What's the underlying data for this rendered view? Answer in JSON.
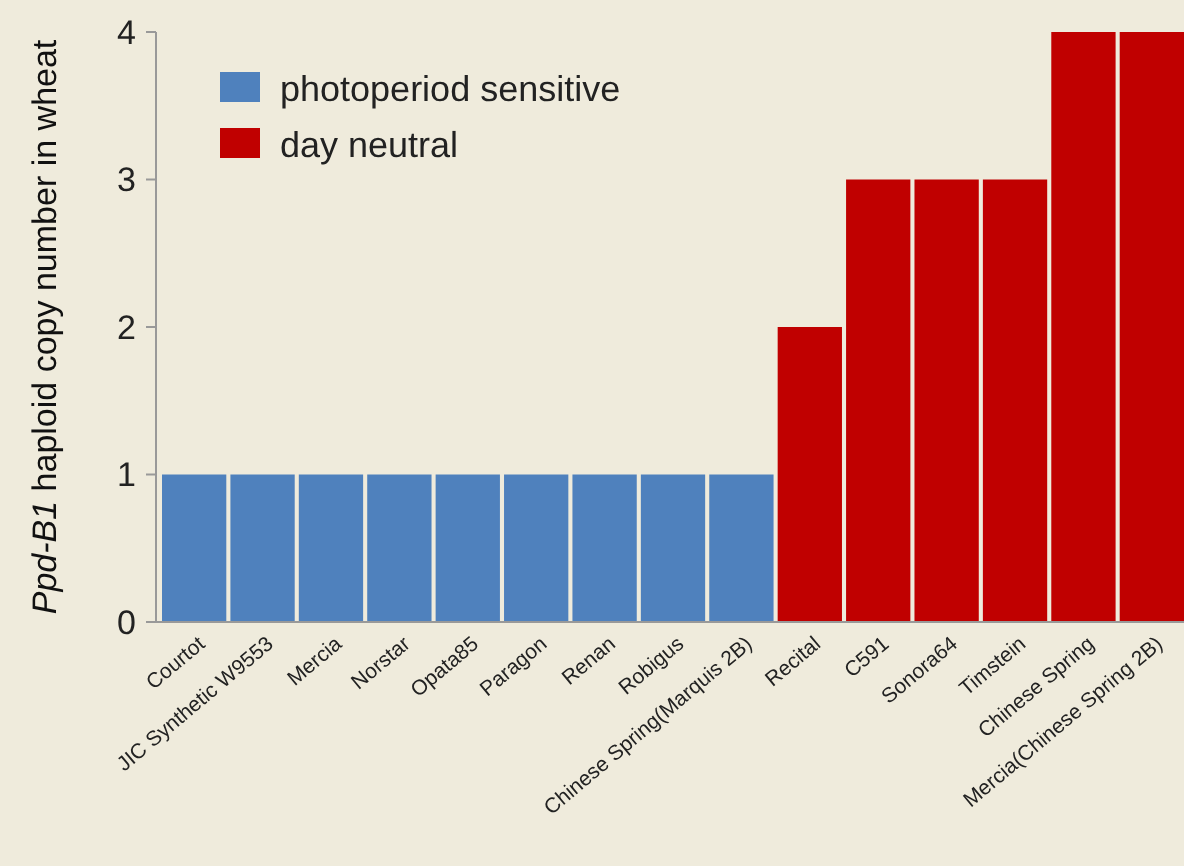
{
  "chart_data": {
    "type": "bar",
    "ylabel": "Ppd-B1 haploid copy number in wheat",
    "categories": [
      "Courtot",
      "JIC Synthetic W9553",
      "Mercia",
      "Norstar",
      "Opata85",
      "Paragon",
      "Renan",
      "Robigus",
      "Chinese Spring(Marquis 2B)",
      "Recital",
      "C591",
      "Sonora64",
      "Timstein",
      "Chinese Spring",
      "Mercia(Chinese Spring 2B)"
    ],
    "series": [
      {
        "name": "photoperiod sensitive",
        "color": "#4f81bd",
        "values": [
          1,
          1,
          1,
          1,
          1,
          1,
          1,
          1,
          1,
          null,
          null,
          null,
          null,
          null,
          null
        ]
      },
      {
        "name": "day neutral",
        "color": "#c00000",
        "values": [
          null,
          null,
          null,
          null,
          null,
          null,
          null,
          null,
          null,
          2,
          3,
          3,
          3,
          4,
          4
        ]
      }
    ],
    "ylim": [
      0,
      4
    ],
    "yticks": [
      0,
      1,
      2,
      3,
      4
    ],
    "grid": false,
    "legend": "top left"
  }
}
